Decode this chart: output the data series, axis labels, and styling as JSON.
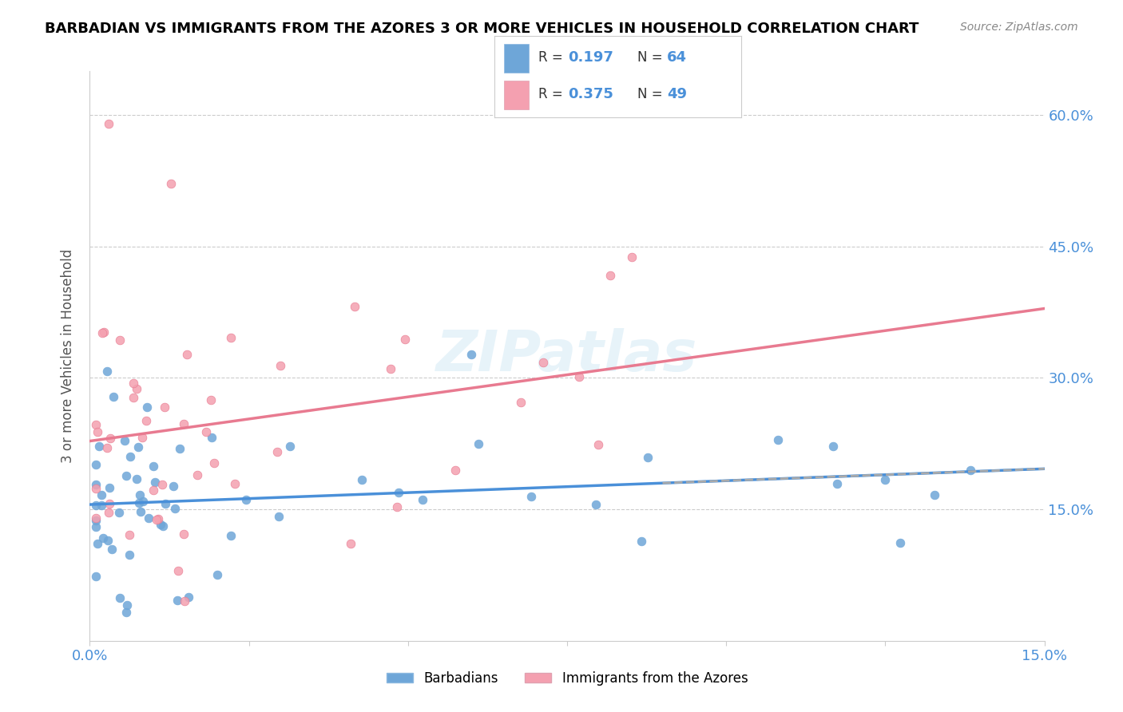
{
  "title": "BARBADIAN VS IMMIGRANTS FROM THE AZORES 3 OR MORE VEHICLES IN HOUSEHOLD CORRELATION CHART",
  "source": "Source: ZipAtlas.com",
  "ylabel": "3 or more Vehicles in Household",
  "ytick_vals": [
    0.15,
    0.3,
    0.45,
    0.6
  ],
  "xlim": [
    0.0,
    0.15
  ],
  "ylim": [
    0.0,
    0.65
  ],
  "legend_r_blue": "0.197",
  "legend_n_blue": "64",
  "legend_r_pink": "0.375",
  "legend_n_pink": "49",
  "color_blue": "#6ea6d8",
  "color_pink": "#f4a0b0",
  "color_blue_dark": "#4a90d9",
  "color_pink_dark": "#e87a90",
  "watermark": "ZIPatlas"
}
